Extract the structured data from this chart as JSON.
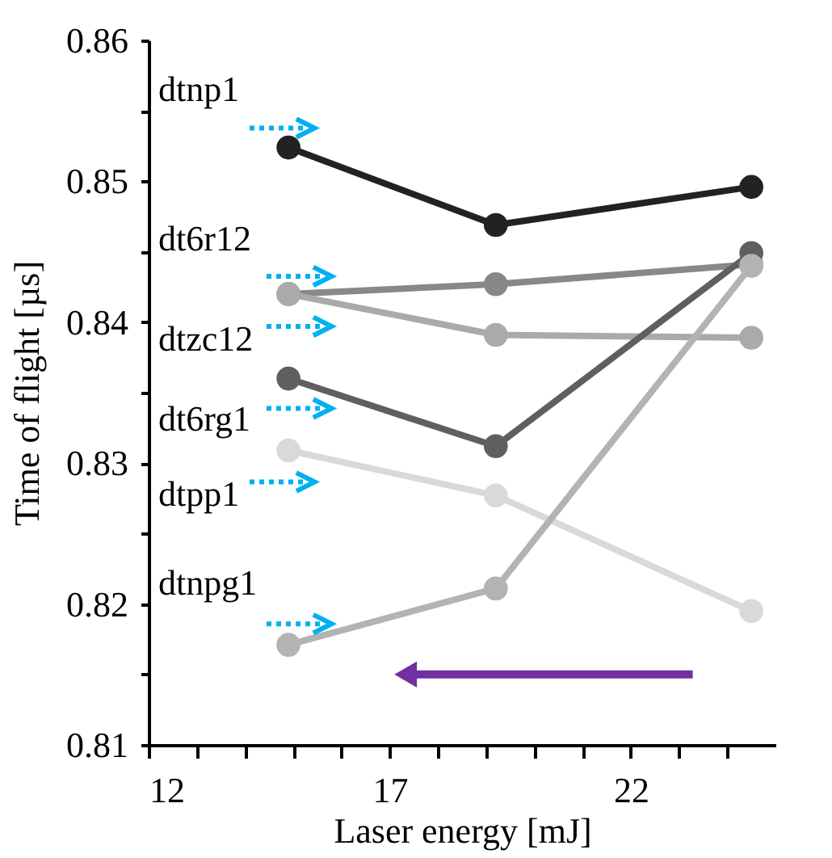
{
  "chart_data": {
    "type": "line",
    "xlabel": "Laser energy [mJ]",
    "ylabel": "Time of flight [µs]",
    "x": [
      14.9,
      19.2,
      24.5
    ],
    "series": [
      {
        "name": "dtnp1",
        "color": "#222222",
        "values": [
          0.8524,
          0.8469,
          0.8496
        ]
      },
      {
        "name": "dt6r12",
        "color": "#888888",
        "values": [
          0.842,
          0.8427,
          0.8441
        ]
      },
      {
        "name": "dtzc12",
        "color": "#aaaaaa",
        "values": [
          0.842,
          0.8391,
          0.8389
        ]
      },
      {
        "name": "dt6rg1",
        "color": "#5f5f5f",
        "values": [
          0.836,
          0.8312,
          0.8449
        ]
      },
      {
        "name": "dtpp1",
        "color": "#d9d9d9",
        "values": [
          0.8309,
          0.8277,
          0.8195
        ]
      },
      {
        "name": "dtnpg1",
        "color": "#b3b3b3",
        "values": [
          0.8171,
          0.8211,
          0.844
        ]
      }
    ],
    "xlim": [
      12,
      25
    ],
    "xticks": [
      12,
      {
        "value": 13,
        "label": null
      },
      {
        "value": 14,
        "label": null
      },
      {
        "value": 15,
        "label": null
      },
      {
        "value": 16,
        "label": null
      },
      17,
      {
        "value": 18,
        "label": null
      },
      {
        "value": 19,
        "label": null
      },
      {
        "value": 20,
        "label": null
      },
      {
        "value": 21,
        "label": null
      },
      22,
      {
        "value": 23,
        "label": null
      },
      {
        "value": 24,
        "label": null
      }
    ],
    "ylim": [
      0.81,
      0.86
    ],
    "yticks": [
      0.81,
      {
        "value": 0.815,
        "label": null
      },
      0.82,
      {
        "value": 0.825,
        "label": null
      },
      0.83,
      {
        "value": 0.835,
        "label": null
      },
      0.84,
      {
        "value": 0.845,
        "label": null
      },
      0.85,
      {
        "value": 0.855,
        "label": null
      },
      0.86
    ],
    "grid": false,
    "marker": "circle",
    "line_style": "solid"
  }
}
